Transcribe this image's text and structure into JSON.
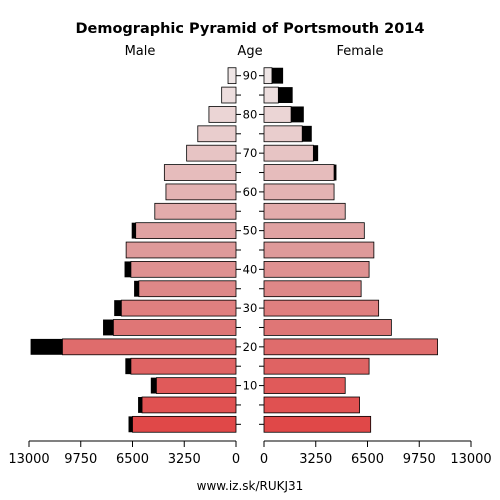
{
  "chart_data": {
    "type": "population-pyramid",
    "title": "Demographic Pyramid of Portsmouth 2014",
    "left_label": "Male",
    "center_label": "Age",
    "right_label": "Female",
    "footer": "www.iz.sk/RUKJ31",
    "xlim": [
      0,
      13000
    ],
    "x_ticks": [
      0,
      3250,
      6500,
      9750,
      13000
    ],
    "x_tick_labels_left": [
      "13000",
      "9750",
      "6500",
      "3250",
      "0"
    ],
    "x_tick_labels_right": [
      "0",
      "3250",
      "6500",
      "9750",
      "13000"
    ],
    "age_groups": [
      "0-4",
      "5-9",
      "10-14",
      "15-19",
      "20-24",
      "25-29",
      "30-34",
      "35-39",
      "40-44",
      "45-49",
      "50-54",
      "55-59",
      "60-64",
      "65-69",
      "70-74",
      "75-79",
      "80-84",
      "85-89",
      "90+"
    ],
    "age_tick_labels": [
      "10",
      "20",
      "30",
      "40",
      "50",
      "60",
      "70",
      "80",
      "90"
    ],
    "series": [
      {
        "name": "Male",
        "base": [
          6500,
          5900,
          5000,
          6600,
          10900,
          7700,
          7200,
          6100,
          6600,
          6900,
          6300,
          5100,
          4400,
          4500,
          3100,
          2400,
          1700,
          900,
          500
        ],
        "excess": [
          250,
          250,
          350,
          350,
          2000,
          650,
          450,
          300,
          400,
          0,
          250,
          0,
          0,
          0,
          0,
          0,
          0,
          0,
          0
        ]
      },
      {
        "name": "Female",
        "base": [
          6700,
          6000,
          5100,
          6600,
          10900,
          8000,
          7200,
          6100,
          6600,
          6900,
          6300,
          5100,
          4400,
          4400,
          3100,
          2400,
          1700,
          900,
          500
        ],
        "excess": [
          0,
          0,
          0,
          0,
          0,
          0,
          0,
          0,
          0,
          0,
          0,
          0,
          0,
          150,
          300,
          600,
          800,
          900,
          700
        ]
      }
    ],
    "colors": {
      "bar_young": "#e04848",
      "bar_mid": "#de9a9a",
      "bar_old": "#efe6e6",
      "excess": "#000000",
      "axis": "#000000"
    }
  }
}
